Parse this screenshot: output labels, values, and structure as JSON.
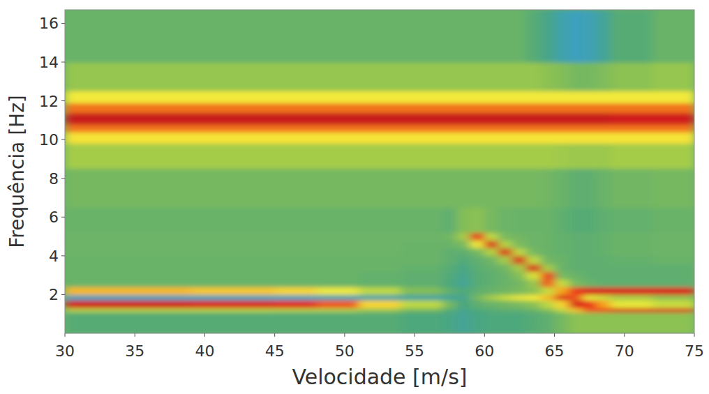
{
  "chart_data": {
    "type": "heatmap",
    "x_label": "Velocidade [m/s]",
    "y_label": "Frequência [Hz]",
    "xlim": [
      30,
      75
    ],
    "ylim": [
      0,
      16.7
    ],
    "xticks": [
      30,
      35,
      40,
      45,
      50,
      55,
      60,
      65,
      70,
      75
    ],
    "yticks": [
      2,
      4,
      6,
      8,
      10,
      12,
      14,
      16
    ],
    "zlim": [
      0,
      1
    ],
    "x_edges": [
      30,
      33,
      36,
      39,
      42,
      45,
      48,
      51,
      54,
      57,
      58,
      59,
      60,
      61,
      62,
      63,
      64,
      65,
      66,
      67,
      68,
      69,
      72,
      75
    ],
    "y_edges": [
      0,
      1.1,
      1.3,
      1.7,
      2.0,
      2.4,
      2.8,
      3.2,
      3.6,
      4.0,
      4.4,
      4.8,
      5.2,
      6.5,
      8.5,
      9.8,
      10.4,
      10.8,
      11.4,
      11.9,
      12.5,
      14.0,
      16.7
    ],
    "cells": [
      [
        0.38,
        0.38,
        0.38,
        0.38,
        0.38,
        0.38,
        0.38,
        0.38,
        0.36,
        0.34,
        0.3,
        0.34,
        0.36,
        0.36,
        0.36,
        0.38,
        0.4,
        0.45,
        0.5,
        0.5,
        0.5,
        0.5,
        0.5
      ],
      [
        0.58,
        0.58,
        0.58,
        0.58,
        0.58,
        0.57,
        0.56,
        0.52,
        0.45,
        0.38,
        0.32,
        0.36,
        0.38,
        0.4,
        0.4,
        0.42,
        0.48,
        0.6,
        0.8,
        0.9,
        0.92,
        0.95,
        0.95
      ],
      [
        0.96,
        0.96,
        0.96,
        0.95,
        0.95,
        0.94,
        0.9,
        0.78,
        0.6,
        0.45,
        0.35,
        0.4,
        0.42,
        0.44,
        0.46,
        0.5,
        0.6,
        0.78,
        0.95,
        0.92,
        0.85,
        0.7,
        0.62
      ],
      [
        0.22,
        0.22,
        0.22,
        0.22,
        0.22,
        0.22,
        0.24,
        0.26,
        0.28,
        0.3,
        0.32,
        0.45,
        0.55,
        0.62,
        0.7,
        0.75,
        0.82,
        0.95,
        0.9,
        0.7,
        0.62,
        0.55,
        0.5
      ],
      [
        0.82,
        0.82,
        0.82,
        0.8,
        0.8,
        0.78,
        0.72,
        0.6,
        0.48,
        0.4,
        0.36,
        0.4,
        0.42,
        0.44,
        0.46,
        0.5,
        0.62,
        0.85,
        0.92,
        0.95,
        0.95,
        0.95,
        0.95
      ],
      [
        0.42,
        0.42,
        0.42,
        0.42,
        0.42,
        0.42,
        0.42,
        0.41,
        0.4,
        0.36,
        0.3,
        0.38,
        0.4,
        0.42,
        0.44,
        0.52,
        0.9,
        0.62,
        0.46,
        0.42,
        0.4,
        0.4,
        0.4
      ],
      [
        0.42,
        0.42,
        0.42,
        0.42,
        0.42,
        0.42,
        0.42,
        0.41,
        0.4,
        0.37,
        0.32,
        0.38,
        0.4,
        0.42,
        0.48,
        0.65,
        0.92,
        0.46,
        0.42,
        0.4,
        0.4,
        0.4,
        0.4
      ],
      [
        0.42,
        0.42,
        0.42,
        0.42,
        0.42,
        0.42,
        0.42,
        0.42,
        0.41,
        0.38,
        0.34,
        0.39,
        0.41,
        0.44,
        0.55,
        0.95,
        0.55,
        0.42,
        0.4,
        0.4,
        0.4,
        0.4,
        0.4
      ],
      [
        0.42,
        0.42,
        0.42,
        0.42,
        0.42,
        0.42,
        0.42,
        0.42,
        0.42,
        0.4,
        0.37,
        0.4,
        0.44,
        0.55,
        0.95,
        0.6,
        0.44,
        0.42,
        0.4,
        0.4,
        0.4,
        0.41,
        0.42
      ],
      [
        0.43,
        0.43,
        0.43,
        0.43,
        0.43,
        0.43,
        0.43,
        0.43,
        0.42,
        0.4,
        0.4,
        0.45,
        0.58,
        0.95,
        0.6,
        0.45,
        0.42,
        0.41,
        0.4,
        0.4,
        0.41,
        0.42,
        0.43
      ],
      [
        0.43,
        0.43,
        0.43,
        0.43,
        0.43,
        0.43,
        0.43,
        0.43,
        0.42,
        0.42,
        0.46,
        0.72,
        0.95,
        0.58,
        0.46,
        0.43,
        0.42,
        0.41,
        0.4,
        0.4,
        0.41,
        0.42,
        0.43
      ],
      [
        0.43,
        0.43,
        0.43,
        0.43,
        0.43,
        0.43,
        0.43,
        0.43,
        0.43,
        0.44,
        0.55,
        0.93,
        0.6,
        0.46,
        0.44,
        0.43,
        0.42,
        0.41,
        0.4,
        0.4,
        0.41,
        0.42,
        0.43
      ],
      [
        0.42,
        0.42,
        0.42,
        0.42,
        0.42,
        0.42,
        0.42,
        0.42,
        0.42,
        0.4,
        0.48,
        0.5,
        0.45,
        0.43,
        0.42,
        0.42,
        0.42,
        0.4,
        0.38,
        0.38,
        0.4,
        0.41,
        0.42
      ],
      [
        0.45,
        0.45,
        0.45,
        0.45,
        0.45,
        0.45,
        0.45,
        0.45,
        0.45,
        0.45,
        0.45,
        0.45,
        0.45,
        0.45,
        0.45,
        0.45,
        0.44,
        0.42,
        0.4,
        0.4,
        0.42,
        0.44,
        0.45
      ],
      [
        0.55,
        0.55,
        0.55,
        0.55,
        0.55,
        0.55,
        0.55,
        0.55,
        0.55,
        0.55,
        0.55,
        0.55,
        0.55,
        0.55,
        0.55,
        0.55,
        0.55,
        0.54,
        0.53,
        0.53,
        0.53,
        0.55,
        0.55
      ],
      [
        0.76,
        0.76,
        0.76,
        0.76,
        0.76,
        0.76,
        0.76,
        0.76,
        0.76,
        0.76,
        0.76,
        0.76,
        0.76,
        0.76,
        0.76,
        0.76,
        0.76,
        0.76,
        0.76,
        0.76,
        0.76,
        0.76,
        0.76
      ],
      [
        0.88,
        0.88,
        0.88,
        0.88,
        0.88,
        0.88,
        0.88,
        0.88,
        0.88,
        0.88,
        0.88,
        0.88,
        0.88,
        0.88,
        0.88,
        0.88,
        0.88,
        0.88,
        0.88,
        0.88,
        0.88,
        0.88,
        0.88
      ],
      [
        0.97,
        0.97,
        0.97,
        0.97,
        0.97,
        0.97,
        0.97,
        0.97,
        0.97,
        0.97,
        0.97,
        0.97,
        0.97,
        0.97,
        0.97,
        0.97,
        0.97,
        0.97,
        0.97,
        0.97,
        0.97,
        0.96,
        0.96
      ],
      [
        0.88,
        0.88,
        0.88,
        0.88,
        0.88,
        0.88,
        0.88,
        0.88,
        0.88,
        0.88,
        0.88,
        0.88,
        0.88,
        0.88,
        0.88,
        0.88,
        0.88,
        0.88,
        0.88,
        0.88,
        0.88,
        0.88,
        0.88
      ],
      [
        0.74,
        0.74,
        0.74,
        0.74,
        0.74,
        0.74,
        0.74,
        0.74,
        0.74,
        0.74,
        0.74,
        0.74,
        0.74,
        0.74,
        0.74,
        0.74,
        0.74,
        0.74,
        0.74,
        0.74,
        0.74,
        0.74,
        0.74
      ],
      [
        0.52,
        0.52,
        0.52,
        0.52,
        0.52,
        0.52,
        0.52,
        0.52,
        0.52,
        0.52,
        0.52,
        0.52,
        0.52,
        0.52,
        0.52,
        0.52,
        0.5,
        0.48,
        0.45,
        0.45,
        0.47,
        0.5,
        0.52
      ],
      [
        0.42,
        0.42,
        0.42,
        0.42,
        0.42,
        0.42,
        0.42,
        0.42,
        0.42,
        0.42,
        0.42,
        0.42,
        0.42,
        0.42,
        0.42,
        0.38,
        0.33,
        0.26,
        0.22,
        0.24,
        0.3,
        0.38,
        0.42
      ]
    ]
  }
}
